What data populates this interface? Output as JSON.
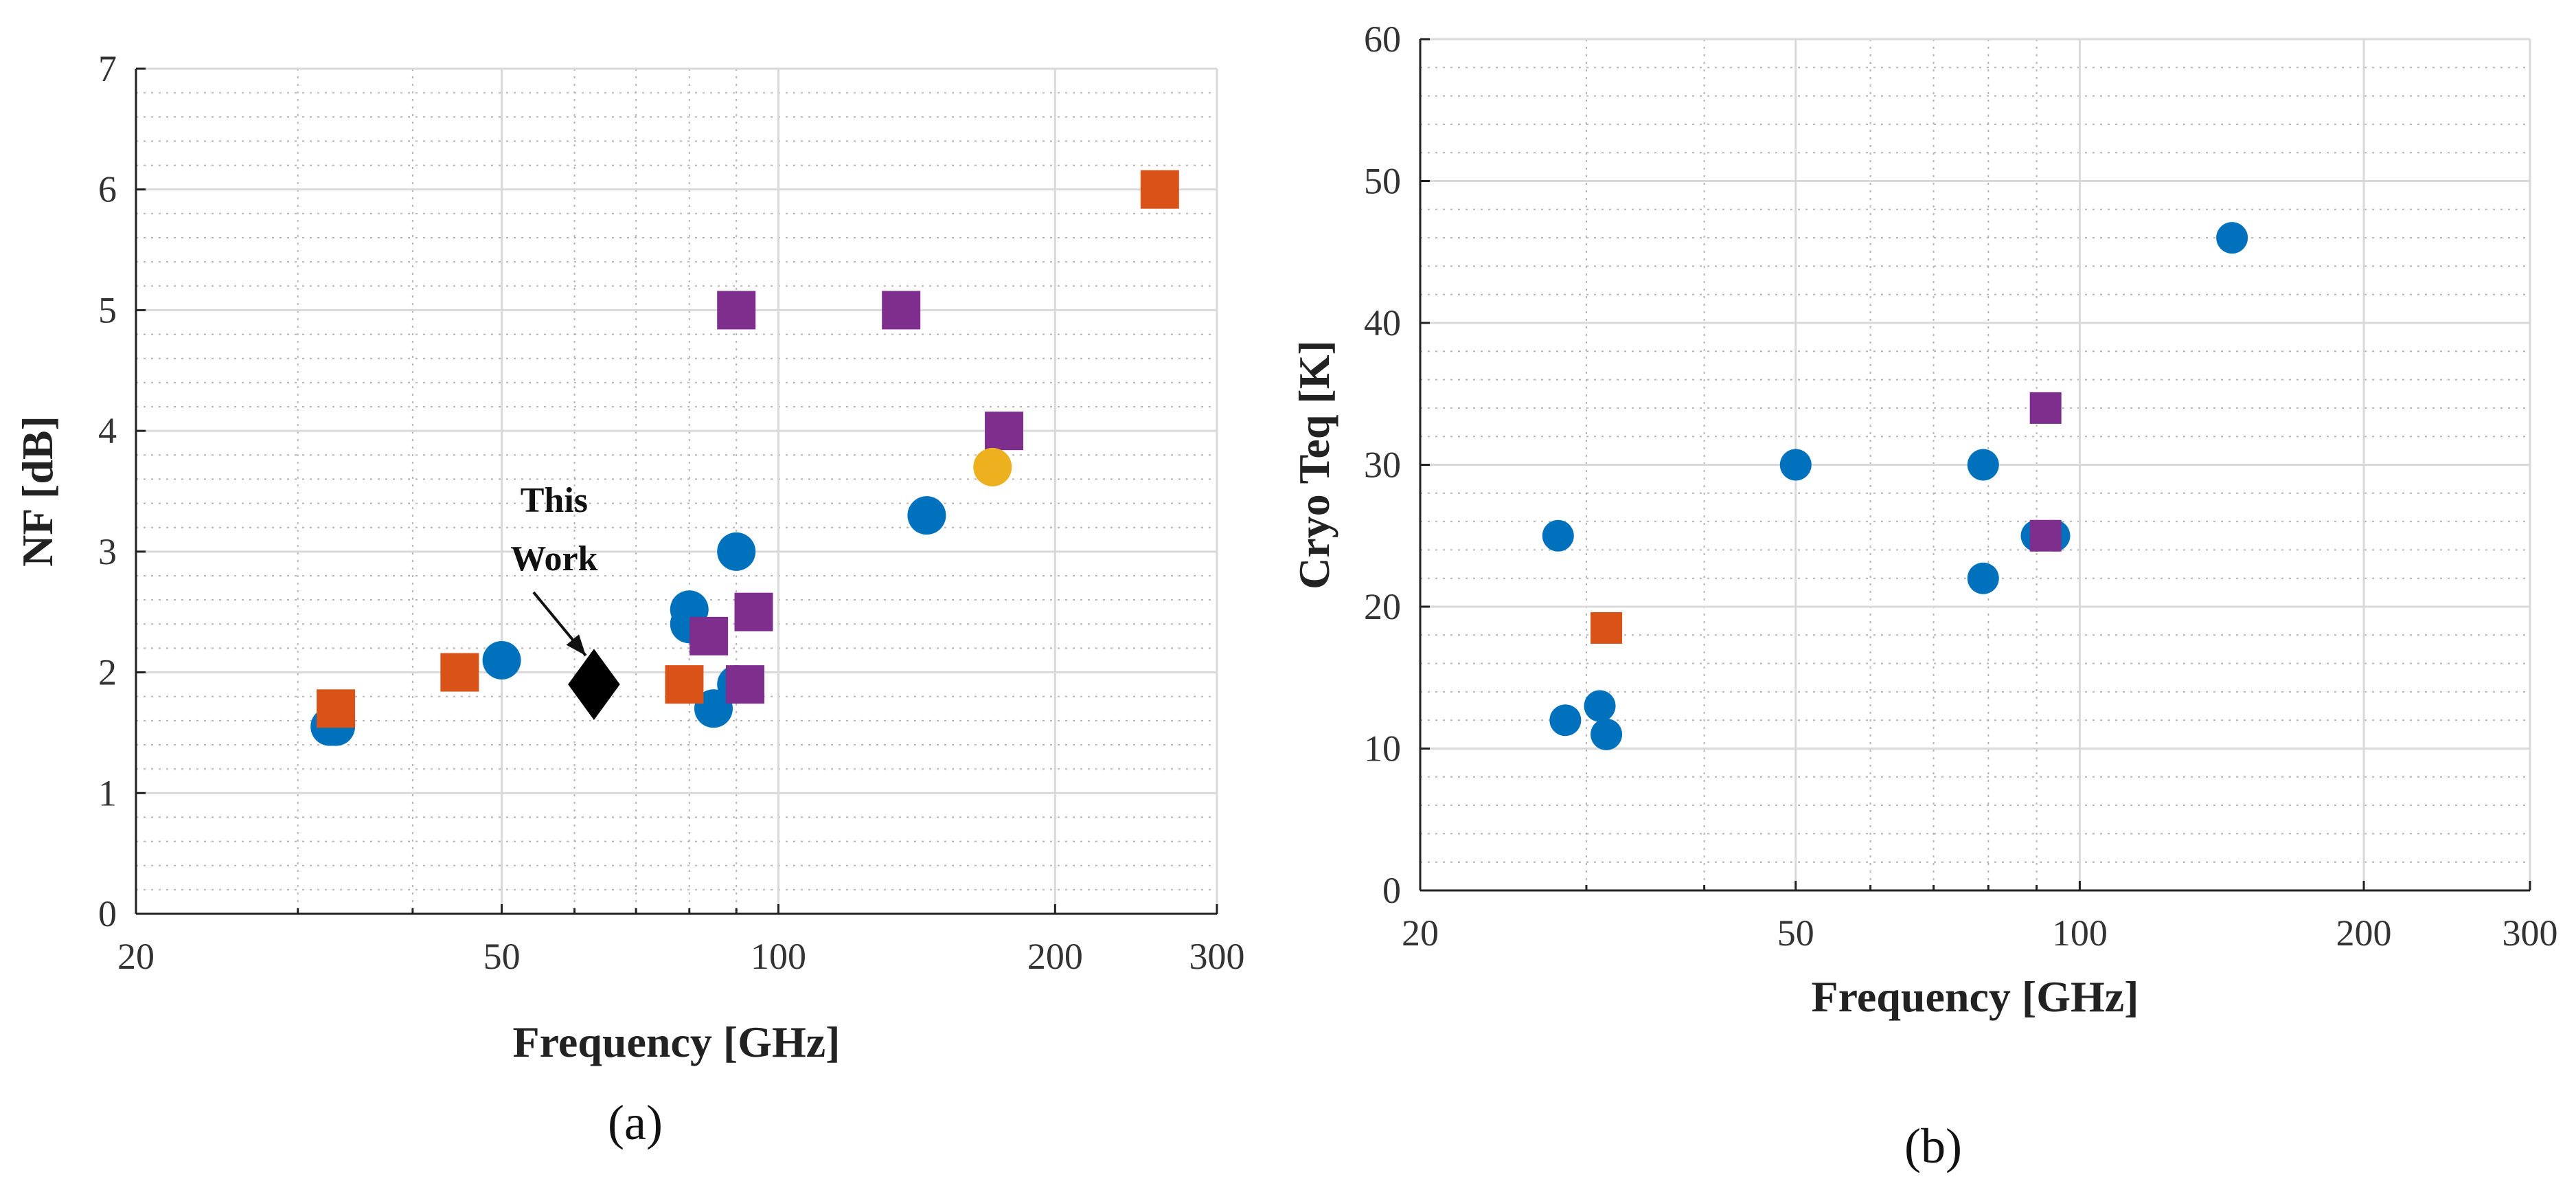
{
  "colors": {
    "blue": "#0072BD",
    "orange": "#D95319",
    "purple": "#7E2F8E",
    "yellow": "#EDB120",
    "black": "#000000"
  },
  "chart_data": [
    {
      "type": "scatter",
      "panel_label": "(a)",
      "title": "",
      "xlabel": "Frequency [GHz]",
      "ylabel": "NF [dB]",
      "xscale": "log",
      "xlim": [
        20,
        300
      ],
      "ylim": [
        0,
        7
      ],
      "xticks": [
        20,
        50,
        100,
        200,
        300
      ],
      "yticks": [
        0,
        1,
        2,
        3,
        4,
        5,
        6,
        7
      ],
      "grid": true,
      "annotation": {
        "lines": [
          "This",
          "Work"
        ],
        "points_to": [
          63,
          1.9
        ]
      },
      "series": [
        {
          "name": "blue circles",
          "marker": "circle",
          "color": "#0072BD",
          "points": [
            [
              32.5,
              1.55
            ],
            [
              33.0,
              1.55
            ],
            [
              50,
              2.1
            ],
            [
              80,
              2.4
            ],
            [
              80,
              2.52
            ],
            [
              90,
              3.0
            ],
            [
              90,
              1.9
            ],
            [
              85,
              1.7
            ],
            [
              145,
              3.3
            ]
          ]
        },
        {
          "name": "orange squares",
          "marker": "square",
          "color": "#D95319",
          "points": [
            [
              33,
              1.7
            ],
            [
              45,
              2.0
            ],
            [
              79,
              1.9
            ],
            [
              260,
              6.0
            ]
          ]
        },
        {
          "name": "purple squares",
          "marker": "square",
          "color": "#7E2F8E",
          "points": [
            [
              90,
              5.0
            ],
            [
              136,
              5.0
            ],
            [
              176,
              4.0
            ],
            [
              94,
              2.5
            ],
            [
              84,
              2.3
            ],
            [
              92,
              1.9
            ]
          ]
        },
        {
          "name": "yellow circles",
          "marker": "circle",
          "color": "#EDB120",
          "points": [
            [
              171,
              3.7
            ]
          ]
        },
        {
          "name": "This Work",
          "marker": "diamond",
          "color": "#000000",
          "points": [
            [
              63,
              1.9
            ]
          ]
        }
      ]
    },
    {
      "type": "scatter",
      "panel_label": "(b)",
      "title": "",
      "xlabel": "Frequency [GHz]",
      "ylabel": "Cryo Teq [K]",
      "xscale": "log",
      "xlim": [
        20,
        300
      ],
      "ylim": [
        0,
        60
      ],
      "xticks": [
        20,
        50,
        100,
        200,
        300
      ],
      "yticks": [
        0,
        10,
        20,
        30,
        40,
        50,
        60
      ],
      "grid": true,
      "series": [
        {
          "name": "blue circles",
          "marker": "circle",
          "color": "#0072BD",
          "points": [
            [
              28,
              25
            ],
            [
              28.5,
              12
            ],
            [
              31,
              13
            ],
            [
              31.5,
              11
            ],
            [
              50,
              30
            ],
            [
              79,
              30
            ],
            [
              79,
              22
            ],
            [
              90,
              25
            ],
            [
              94,
              25
            ],
            [
              145,
              46
            ]
          ]
        },
        {
          "name": "orange squares",
          "marker": "square",
          "color": "#D95319",
          "points": [
            [
              31.5,
              18.5
            ]
          ]
        },
        {
          "name": "purple squares",
          "marker": "square",
          "color": "#7E2F8E",
          "points": [
            [
              92,
              34
            ],
            [
              92,
              25
            ]
          ]
        }
      ]
    }
  ]
}
